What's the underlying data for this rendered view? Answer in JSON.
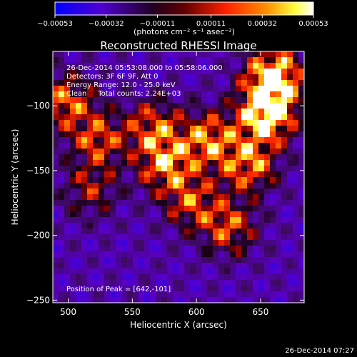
{
  "chart_data": {
    "type": "heatmap",
    "title": "Reconstructed RHESSI Image",
    "xlabel": "Heliocentric X (arcsec)",
    "ylabel": "Heliocentric Y (arcsec)",
    "xlim": [
      488,
      684
    ],
    "ylim": [
      -252,
      -58
    ],
    "x_ticks": [
      500,
      550,
      600,
      650
    ],
    "y_ticks": [
      -100,
      -150,
      -200,
      -250
    ],
    "x_tick_labels": [
      "500",
      "550",
      "600",
      "650"
    ],
    "y_tick_labels": [
      "−100",
      "−150",
      "−200",
      "−250"
    ],
    "colorbar": {
      "range": [
        -0.00053,
        0.00053
      ],
      "tick_values": [
        -0.00053,
        -0.00032,
        -0.00011,
        0.00011,
        0.00032,
        0.00053
      ],
      "tick_labels": [
        "−0.00053",
        "−0.00032",
        "−0.00011",
        "0.00011",
        "0.00032",
        "0.00053"
      ],
      "units_label": "(photons cm⁻² s⁻¹ asec⁻²)",
      "colormap": [
        "#0000ff",
        "#6000c0",
        "#000000",
        "#8a0000",
        "#ff2000",
        "#ff9000",
        "#ffff40",
        "#ffffff"
      ]
    },
    "annotations": [
      "26-Dec-2014 05:53:08.000 to 05:58:06.000",
      "Detectors: 3F 6F 9F, Att 0",
      "Energy Range: 12.0 - 25.0 keV",
      "Clean     Total counts: 2.24E+03"
    ],
    "peak_label": "Position of Peak = [642,-101]",
    "peak_position": [
      642,
      -101
    ],
    "grid": false
  },
  "footer": {
    "timestamp": "26-Dec-2014 07:27"
  }
}
